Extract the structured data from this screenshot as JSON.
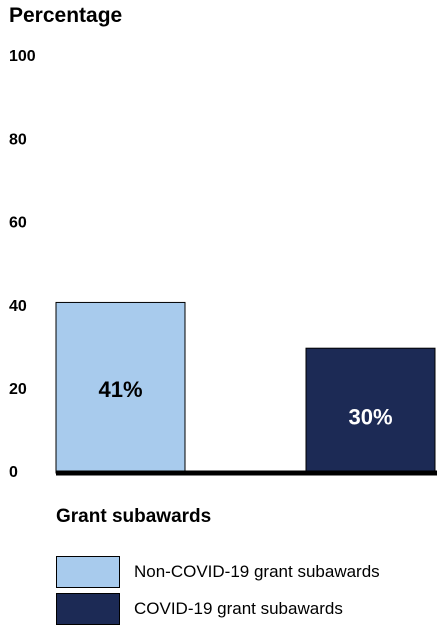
{
  "chart_data": {
    "type": "bar",
    "title": "",
    "ylabel": "Percentage",
    "xlabel": "Grant subawards",
    "ylim": [
      0,
      100
    ],
    "yticks": [
      0,
      20,
      40,
      60,
      80,
      100
    ],
    "grid": false,
    "legend_position": "bottom",
    "categories": [
      "Non-COVID-19 grant subawards",
      "COVID-19 grant subawards"
    ],
    "values": [
      41,
      30
    ],
    "data_labels": [
      "41%",
      "30%"
    ],
    "colors": [
      "#a8cbed",
      "#1c2a55"
    ],
    "label_colors": [
      "#000000",
      "#ffffff"
    ],
    "axis_color": "#000000"
  },
  "legend": {
    "items": [
      {
        "label": "Non-COVID-19 grant subawards",
        "color": "#a8cbed"
      },
      {
        "label": "COVID-19 grant subawards",
        "color": "#1c2a55"
      }
    ]
  }
}
